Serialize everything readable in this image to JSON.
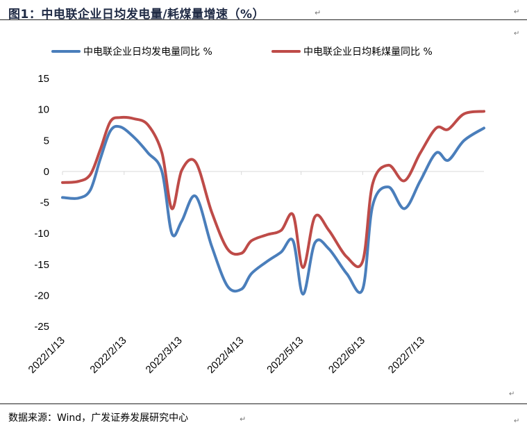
{
  "title": "图1：中电联企业日均发电量/耗煤量增速（%）",
  "source": "数据来源：Wind，广发证券发展研究中心",
  "marks": {
    "return_glyph": "↵"
  },
  "colors": {
    "series1": "#4a7ebb",
    "series2": "#be4b48",
    "title": "#1f2a44"
  },
  "chart_data": {
    "type": "line",
    "ylim": [
      -25,
      15
    ],
    "yticks": [
      15,
      10,
      5,
      0,
      -5,
      -10,
      -15,
      -20,
      -25
    ],
    "xlim": [
      "2022-01-13",
      "2022-08-13"
    ],
    "xticks": [
      "2022/1/13",
      "2022/2/13",
      "2022/3/13",
      "2022/4/13",
      "2022/5/13",
      "2022/6/13",
      "2022/7/13"
    ],
    "legend": "top",
    "grid": false,
    "series": [
      {
        "name": "中电联企业日均发电量同比 %",
        "color": "#4a7ebb",
        "points": [
          [
            "2022-01-13",
            -4.2
          ],
          [
            "2022-01-21",
            -4.3
          ],
          [
            "2022-01-27",
            -3.0
          ],
          [
            "2022-02-01",
            2.0
          ],
          [
            "2022-02-06",
            6.5
          ],
          [
            "2022-02-11",
            7.2
          ],
          [
            "2022-02-18",
            5.5
          ],
          [
            "2022-02-25",
            3.0
          ],
          [
            "2022-03-04",
            0.0
          ],
          [
            "2022-03-09",
            -10.0
          ],
          [
            "2022-03-14",
            -8.0
          ],
          [
            "2022-03-21",
            -4.0
          ],
          [
            "2022-03-29",
            -12.0
          ],
          [
            "2022-04-06",
            -18.5
          ],
          [
            "2022-04-13",
            -19.0
          ],
          [
            "2022-04-18",
            -16.5
          ],
          [
            "2022-04-26",
            -14.5
          ],
          [
            "2022-05-03",
            -13.0
          ],
          [
            "2022-05-09",
            -11.2
          ],
          [
            "2022-05-14",
            -19.8
          ],
          [
            "2022-05-20",
            -11.5
          ],
          [
            "2022-05-27",
            -12.5
          ],
          [
            "2022-06-05",
            -16.5
          ],
          [
            "2022-06-13",
            -19.0
          ],
          [
            "2022-06-18",
            -5.5
          ],
          [
            "2022-06-26",
            -2.5
          ],
          [
            "2022-07-04",
            -6.0
          ],
          [
            "2022-07-12",
            -1.5
          ],
          [
            "2022-07-20",
            3.0
          ],
          [
            "2022-07-26",
            1.8
          ],
          [
            "2022-08-03",
            5.0
          ],
          [
            "2022-08-13",
            7.0
          ]
        ]
      },
      {
        "name": "中电联企业日均耗煤量同比 %",
        "color": "#be4b48",
        "points": [
          [
            "2022-01-13",
            -1.8
          ],
          [
            "2022-01-21",
            -1.6
          ],
          [
            "2022-01-27",
            -0.5
          ],
          [
            "2022-02-01",
            3.5
          ],
          [
            "2022-02-06",
            8.0
          ],
          [
            "2022-02-11",
            8.7
          ],
          [
            "2022-02-18",
            8.5
          ],
          [
            "2022-02-25",
            7.5
          ],
          [
            "2022-03-04",
            3.0
          ],
          [
            "2022-03-09",
            -6.0
          ],
          [
            "2022-03-14",
            0.2
          ],
          [
            "2022-03-21",
            1.5
          ],
          [
            "2022-03-29",
            -6.5
          ],
          [
            "2022-04-06",
            -12.5
          ],
          [
            "2022-04-13",
            -13.2
          ],
          [
            "2022-04-18",
            -11.2
          ],
          [
            "2022-04-26",
            -10.2
          ],
          [
            "2022-05-03",
            -9.5
          ],
          [
            "2022-05-09",
            -7.0
          ],
          [
            "2022-05-14",
            -15.5
          ],
          [
            "2022-05-20",
            -7.3
          ],
          [
            "2022-05-27",
            -9.5
          ],
          [
            "2022-06-05",
            -13.8
          ],
          [
            "2022-06-13",
            -14.5
          ],
          [
            "2022-06-18",
            -2.0
          ],
          [
            "2022-06-26",
            1.0
          ],
          [
            "2022-07-04",
            -1.5
          ],
          [
            "2022-07-12",
            3.0
          ],
          [
            "2022-07-20",
            7.0
          ],
          [
            "2022-07-26",
            6.8
          ],
          [
            "2022-08-03",
            9.3
          ],
          [
            "2022-08-13",
            9.7
          ]
        ]
      }
    ]
  }
}
